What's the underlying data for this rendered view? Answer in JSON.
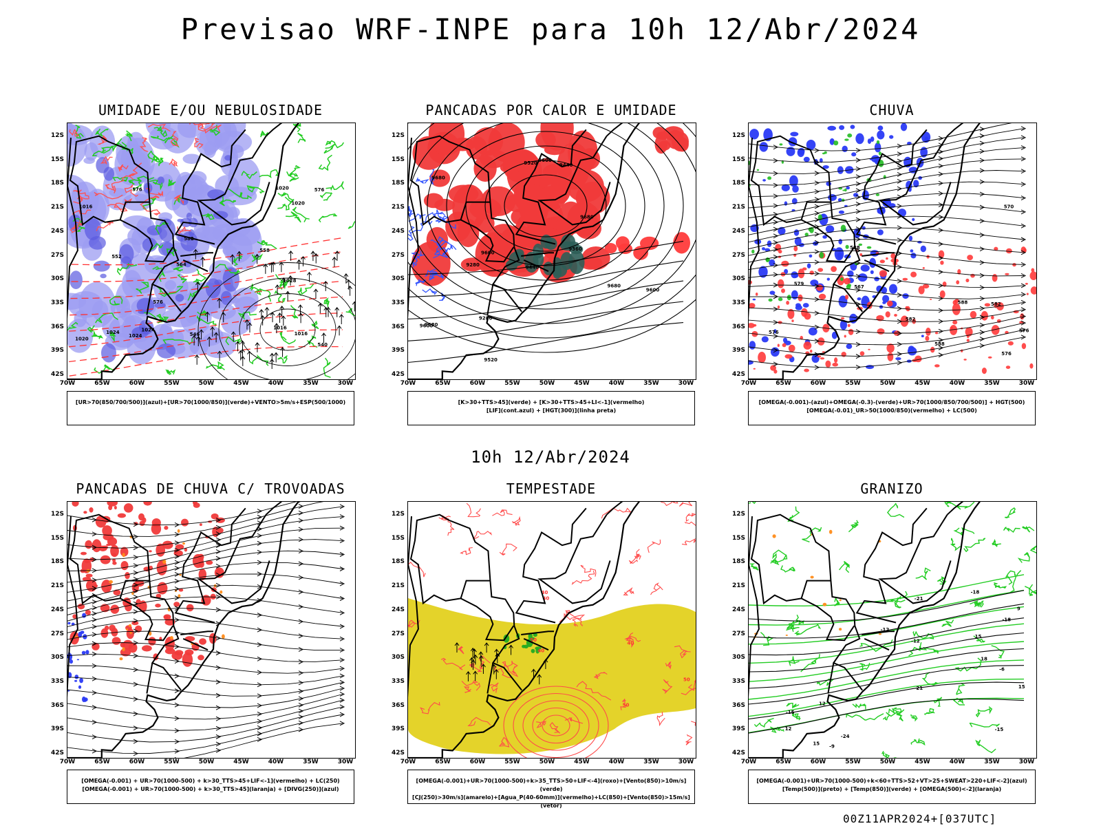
{
  "title": "Previsao WRF-INPE  para 10h 12/Abr/2024",
  "mid_title": "10h 12/Abr/2024",
  "footer": "00Z11APR2024+[037UTC]",
  "lat_labels": [
    "12S",
    "15S",
    "18S",
    "21S",
    "24S",
    "27S",
    "30S",
    "33S",
    "36S",
    "39S",
    "42S"
  ],
  "lon_labels": [
    "70W",
    "65W",
    "60W",
    "55W",
    "50W",
    "45W",
    "40W",
    "35W",
    "30W"
  ],
  "panels": [
    {
      "id": "umidade",
      "title": "UMIDADE E/OU NEBULOSIDADE",
      "legend": [
        "[UR>70(850/700/500)](azul)+[UR>70(1000/850)](verde)+VENTO>5m/s+ESP(500/1000)"
      ],
      "contour_labels": [
        "1016",
        "1016",
        "1016",
        "1020",
        "1020",
        "1020",
        "1024",
        "1024",
        "1028",
        "1024",
        "576",
        "576",
        "576",
        "582",
        "558",
        "564",
        "552",
        "546",
        "540"
      ]
    },
    {
      "id": "pancadas-calor",
      "title": "PANCADAS POR CALOR E UMIDADE",
      "legend": [
        "[K>30+TTS>45](verde)  +  [K>30+TTS>45+LI<-1](vermelho)",
        "[LIF](cont.azul)  +  [HGT(300)](linha preta)"
      ],
      "contour_labels": [
        "9680",
        "9600",
        "9680",
        "9680",
        "9680",
        "9600",
        "9600",
        "9520",
        "9440",
        "9360",
        "9280",
        "9280",
        "9520",
        "9440",
        "9600"
      ]
    },
    {
      "id": "chuva",
      "title": "CHUVA",
      "legend": [
        "[OMEGA(-0.001)-(azul)+OMEGA(-0.3)-(verde)+UR>70(1000/850/700/500)]  +  HGT(500)",
        "[OMEGA(-0.01)_UR>50(1000/850)(vermelho)  +  LC(500)"
      ],
      "contour_labels": [
        "588",
        "588",
        "588",
        "582",
        "582",
        "576",
        "570",
        "567",
        "576",
        "576",
        "579"
      ]
    },
    {
      "id": "pancadas-trovoadas",
      "title": "PANCADAS DE CHUVA C/ TROVOADAS",
      "legend": [
        "[OMEGA(-0.001)  +  UR>70(1000-500)  +  k>30_TTS>45+LIF<-1](vermelho)  +  LC(250)",
        "[OMEGA(-0.001)  +  UR>70(1000-500)  +  k>30_TTS>45](laranja)  +  [DIVG(250)](azul)"
      ],
      "contour_labels": []
    },
    {
      "id": "tempestade",
      "title": "TEMPESTADE",
      "legend": [
        "[OMEGA(-0.001)+UR>70(1000-500)+k>35_TTS>50+LIF<-4](roxo)+[Vento(850)>10m/s](verde)",
        "[CJ(250)>30m/s](amarelo)+[Agua_P(40-60mm)](vermelho)+LC(850)+[Vento(850)>15m/s](vetor)"
      ],
      "contour_labels": [
        "40",
        "40",
        "50",
        "40",
        "40",
        "50",
        "50"
      ]
    },
    {
      "id": "granizo",
      "title": "GRANIZO",
      "legend": [
        "[OMEGA(-0.001)+UR>70(1000-500)+k<60+TTS>52+VT>25+SWEAT>220+LIF<-2](azul)",
        "[Temp(500)](preto)  +  [Temp(850)](verde)  +  [OMEGA(500)<-2](laranja)"
      ],
      "contour_labels": [
        "-12",
        "-15",
        "-18",
        "-21",
        "-24",
        "-12",
        "-15",
        "-18",
        "-21",
        "-9",
        "-6",
        "15",
        "18",
        "15",
        "12",
        "15",
        "12",
        "9"
      ]
    }
  ]
}
